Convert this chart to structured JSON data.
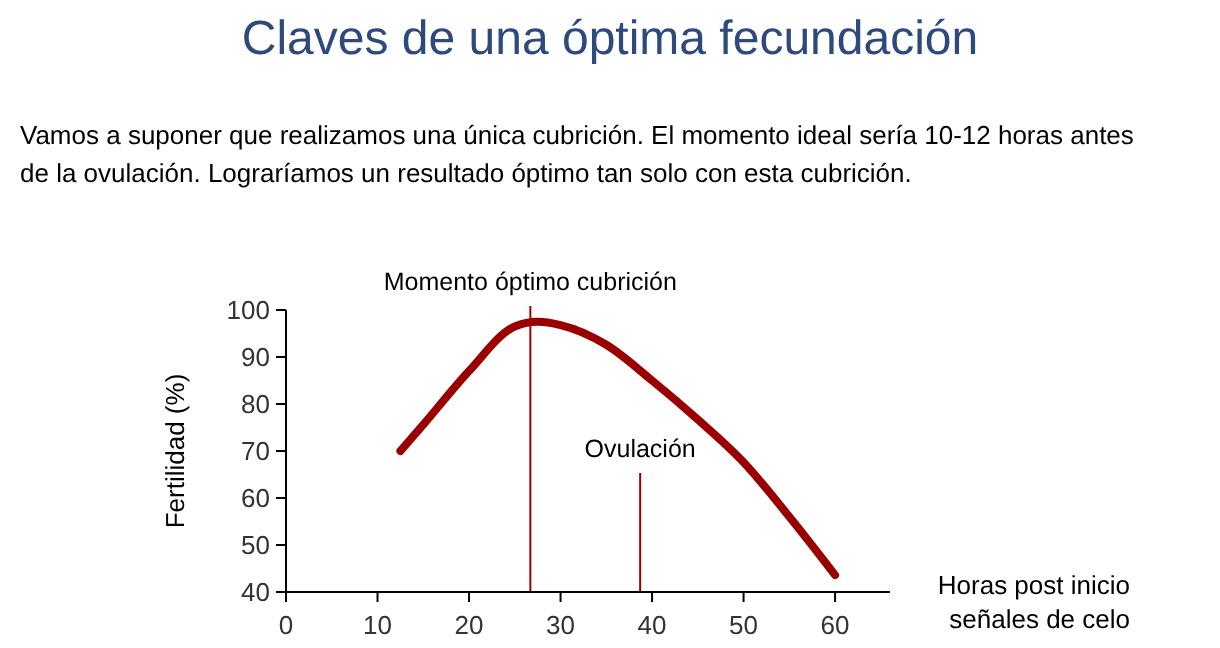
{
  "chart_data": {
    "type": "line",
    "title": "Claves de una óptima fecundación",
    "subtitle": "Vamos a suponer que realizamos una única cubrición. El momento ideal sería 10-12 horas antes de la ovulación. Lograríamos un resultado óptimo tan solo con esta cubrición.",
    "xlabel": "Horas post inicio señales de celo",
    "ylabel": "Fertilidad (%)",
    "series": [
      {
        "color": "#9b0000",
        "x": [
          12.5,
          15,
          20,
          25,
          27.5,
          30,
          35,
          40,
          45,
          50,
          55,
          60
        ],
        "values": [
          70,
          75.6,
          87,
          96.5,
          97.5,
          96.8,
          92.6,
          85,
          76.7,
          67.6,
          56,
          43.6
        ]
      }
    ],
    "xlim": [
      0,
      66
    ],
    "xticks": [
      0,
      10,
      20,
      30,
      40,
      50,
      60
    ],
    "ylim": [
      40,
      100
    ],
    "yticks": [
      40,
      50,
      60,
      70,
      80,
      90,
      100
    ],
    "ref_lines": [
      {
        "axis": "x",
        "value": 26.7,
        "label": "Momento óptimo cubrición",
        "color": "#9b0000"
      },
      {
        "axis": "x",
        "value": 38.7,
        "label": "Ovulación",
        "color": "#9b0000"
      }
    ],
    "grid": false,
    "marker": "none",
    "line_style": "solid"
  }
}
